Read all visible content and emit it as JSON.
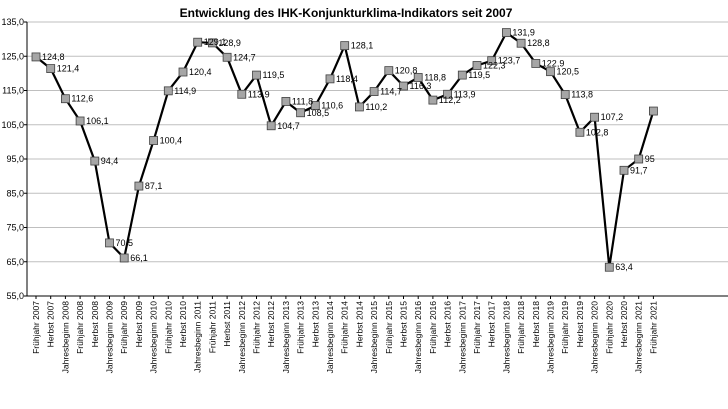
{
  "chart_data": {
    "type": "line",
    "title": "Entwicklung des IHK-Konjunkturklima-Indikators seit 2007",
    "xlabel": "",
    "ylabel": "",
    "ylim": [
      55.0,
      135.0
    ],
    "yticks": [
      "55,0",
      "65,0",
      "75,0",
      "85,0",
      "95,0",
      "105,0",
      "115,0",
      "125,0",
      "135,0"
    ],
    "grid": true,
    "legend": "none",
    "categories": [
      "Frühjahr 2007",
      "Herbst 2007",
      "Jahresbeginn 2008",
      "Frühjahr 2008",
      "Herbst 2008",
      "Jahresbeginn 2009",
      "Frühjahr 2009",
      "Herbst 2009",
      "Jahresbeginn 2010",
      "Frühjahr 2010",
      "Herbst 2010",
      "Jahresbeginn 2011",
      "Frühjahr 2011",
      "Herbst 2011",
      "Jahresbeginn 2012",
      "Frühjahr 2012",
      "Herbst 2012",
      "Jahresbeginn 2013",
      "Frühjahr 2013",
      "Herbst 2013",
      "Jahresbeginn 2014",
      "Frühjahr 2014",
      "Herbst 2014",
      "Jahresbeginn 2015",
      "Frühjahr 2015",
      "Herbst 2015",
      "Jahresbeginn 2016",
      "Frühjahr 2016",
      "Herbst 2016",
      "Jahresbeginn 2017",
      "Frühjahr 2017",
      "Herbst 2017",
      "Jahresbeginn 2018",
      "Frühjahr 2018",
      "Herbst 2018",
      "Jahresbeginn 2019",
      "Frühjahr 2019",
      "Herbst 2019",
      "Jahresbeginn 2020",
      "Frühjahr 2020",
      "Herbst 2020",
      "Jahresbeginn 2021",
      "Frühjahr 2021"
    ],
    "series": [
      {
        "values": [
          124.8,
          121.4,
          112.6,
          106.1,
          94.4,
          70.5,
          66.1,
          87.1,
          100.4,
          114.9,
          120.4,
          129.1,
          128.9,
          124.7,
          113.9,
          119.5,
          104.7,
          111.8,
          108.5,
          110.6,
          118.4,
          128.1,
          110.2,
          114.7,
          120.8,
          116.3,
          118.8,
          112.2,
          113.9,
          119.5,
          122.3,
          123.7,
          131.9,
          128.8,
          122.9,
          120.5,
          113.8,
          102.8,
          107.2,
          63.4,
          91.7,
          95.0,
          109.0
        ],
        "labels": [
          "124,8",
          "121,4",
          "112,6",
          "106,1",
          "94,4",
          "70,5",
          "66,1",
          "87,1",
          "100,4",
          "114,9",
          "120,4",
          "129,1",
          "128,9",
          "124,7",
          "113,9",
          "119,5",
          "104,7",
          "111,8",
          "108,5",
          "110,6",
          "118,4",
          "128,1",
          "110,2",
          "114,7",
          "120,8",
          "116,3",
          "118,8",
          "112,2",
          "113,9",
          "119,5",
          "122,3",
          "123,7",
          "131,9",
          "128,8",
          "122,9",
          "120,5",
          "113,8",
          "102,8",
          "107,2",
          "63,4",
          "91,7",
          "95",
          ""
        ],
        "line_color": "#000000",
        "marker_color": "#a6a6a6"
      }
    ]
  }
}
